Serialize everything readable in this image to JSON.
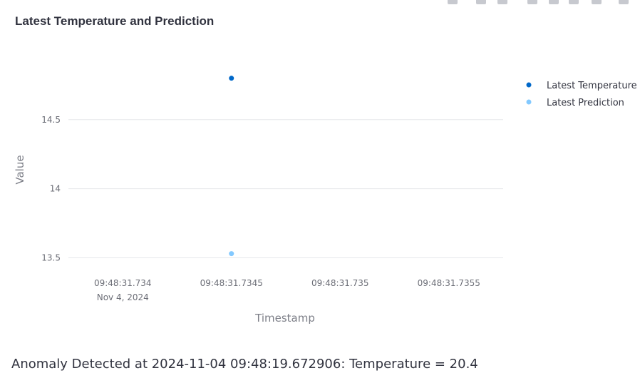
{
  "chart_data": {
    "type": "scatter",
    "title": "Latest Temperature and Prediction",
    "xlabel": "Timestamp",
    "ylabel": "Value",
    "x_ticks": [
      {
        "label": "09:48:31.734",
        "sublabel": "Nov 4, 2024"
      },
      {
        "label": "09:48:31.7345",
        "sublabel": ""
      },
      {
        "label": "09:48:31.735",
        "sublabel": ""
      },
      {
        "label": "09:48:31.7355",
        "sublabel": ""
      }
    ],
    "x_tick_values": [
      0,
      0.5,
      1.0,
      1.5
    ],
    "xlim": [
      -0.25,
      1.75
    ],
    "y_ticks": [
      "13.5",
      "14",
      "14.5"
    ],
    "y_tick_values": [
      13.5,
      14,
      14.5
    ],
    "ylim": [
      13.43,
      14.85
    ],
    "grid": true,
    "legend_position": "top-right",
    "series": [
      {
        "name": "Latest Temperature",
        "color": "#0068c9",
        "x": [
          0.5
        ],
        "y": [
          14.8
        ]
      },
      {
        "name": "Latest Prediction",
        "color": "#83c9ff",
        "x": [
          0.5
        ],
        "y": [
          13.53
        ]
      }
    ]
  },
  "anomaly_message": "Anomaly Detected at 2024-11-04 09:48:19.672906: Temperature = 20.4"
}
